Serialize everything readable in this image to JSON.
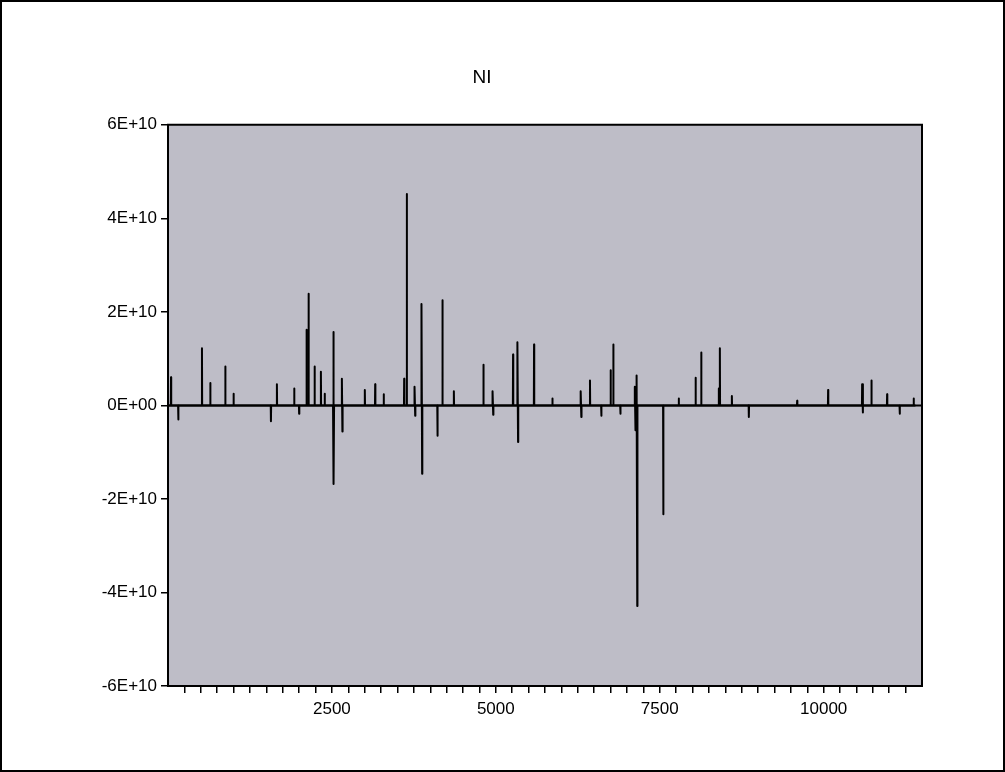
{
  "chart_data": {
    "type": "line",
    "title": "NI",
    "color": "#000000",
    "x": [
      1,
      43,
      46,
      49,
      154,
      157,
      160,
      515,
      518,
      521,
      642,
      645,
      648,
      871,
      874,
      877,
      997,
      1000,
      1003,
      1567,
      1570,
      1573,
      1658,
      1661,
      1664,
      1922,
      1925,
      1928,
      1997,
      2000,
      2003,
      2110,
      2113,
      2116,
      2141,
      2144,
      2147,
      2233,
      2236,
      2239,
      2329,
      2332,
      2335,
      2387,
      2390,
      2393,
      2517,
      2520,
      2530,
      2533,
      2649,
      2652,
      2660,
      2663,
      2999,
      3002,
      3005,
      3157,
      3160,
      3163,
      3287,
      3290,
      3293,
      3599,
      3602,
      3605,
      3639,
      3642,
      3645,
      3757,
      3760,
      3770,
      3773,
      3863,
      3866,
      3876,
      3879,
      4107,
      4110,
      4113,
      4183,
      4186,
      4189,
      4357,
      4360,
      4363,
      4808,
      4811,
      4814,
      4947,
      4950,
      4960,
      4963,
      5260,
      5263,
      5266,
      5326,
      5329,
      5339,
      5342,
      5580,
      5583,
      5586,
      5860,
      5863,
      5866,
      6291,
      6294,
      6304,
      6307,
      6433,
      6436,
      6439,
      6606,
      6609,
      6612,
      6748,
      6751,
      6754,
      6789,
      6792,
      6795,
      6897,
      6900,
      6903,
      7117,
      7120,
      7130,
      7133,
      7144,
      7147,
      7157,
      7160,
      7551,
      7554,
      7557,
      7787,
      7790,
      7793,
      8044,
      8047,
      8050,
      8130,
      8133,
      8136,
      8397,
      8400,
      8403,
      8414,
      8417,
      8420,
      8597,
      8600,
      8603,
      8856,
      8859,
      8862,
      9593,
      9596,
      9599,
      10065,
      10068,
      10071,
      10584,
      10587,
      10597,
      10600,
      10726,
      10729,
      10732,
      10965,
      10968,
      10971,
      11157,
      11160,
      11163,
      11370,
      11373,
      11376,
      11400
    ],
    "values": [
      0,
      0,
      6000000000.0,
      0,
      0,
      -3000000000.0,
      0,
      0,
      12200000000.0,
      0,
      0,
      4800000000.0,
      0,
      0,
      8300000000.0,
      0,
      0,
      2500000000.0,
      0,
      0,
      -3400000000.0,
      0,
      0,
      4500000000.0,
      0,
      0,
      3600000000.0,
      0,
      0,
      -1800000000.0,
      0,
      0,
      16200000000.0,
      0,
      0,
      23900000000.0,
      0,
      0,
      8300000000.0,
      0,
      0,
      7200000000.0,
      0,
      0,
      2500000000.0,
      0,
      0,
      15700000000.0,
      -16800000000.0,
      0,
      0,
      5700000000.0,
      -5600000000.0,
      0,
      0,
      3300000000.0,
      0,
      0,
      4500000000.0,
      0,
      0,
      2400000000.0,
      0,
      0,
      5700000000.0,
      0,
      0,
      45200000000.0,
      0,
      0,
      4000000000.0,
      -2200000000.0,
      0,
      0,
      21700000000.0,
      -14600000000.0,
      0,
      0,
      -6500000000.0,
      0,
      0,
      22500000000.0,
      0,
      0,
      3000000000.0,
      0,
      0,
      8700000000.0,
      0,
      0,
      3000000000.0,
      -2000000000.0,
      0,
      0,
      10900000000.0,
      0,
      0,
      13500000000.0,
      -7800000000.0,
      0,
      0,
      13000000000.0,
      0,
      0,
      1500000000.0,
      0,
      0,
      3000000000.0,
      -2500000000.0,
      0,
      0,
      5300000000.0,
      0,
      0,
      -2200000000.0,
      0,
      0,
      7500000000.0,
      0,
      0,
      13000000000.0,
      0,
      0,
      -1800000000.0,
      0,
      0,
      4000000000.0,
      -5300000000.0,
      0,
      0,
      6400000000.0,
      -42900000000.0,
      0,
      0,
      -23300000000.0,
      0,
      0,
      1500000000.0,
      0,
      0,
      5900000000.0,
      0,
      0,
      11300000000.0,
      0,
      0,
      3600000000.0,
      0,
      0,
      12200000000.0,
      0,
      0,
      2000000000.0,
      0,
      0,
      -2500000000.0,
      0,
      0,
      1000000000.0,
      0,
      0,
      3300000000.0,
      0,
      0,
      4500000000.0,
      -1500000000.0,
      0,
      0,
      5300000000.0,
      0,
      0,
      2400000000.0,
      0,
      0,
      -1800000000.0,
      0,
      0,
      1500000000.0,
      0,
      0
    ],
    "xlim": [
      0,
      11500
    ],
    "xticks": [
      {
        "value": 250,
        "label": null
      },
      {
        "value": 500,
        "label": null
      },
      {
        "value": 750,
        "label": null
      },
      {
        "value": 1000,
        "label": null
      },
      {
        "value": 1250,
        "label": null
      },
      {
        "value": 1500,
        "label": null
      },
      {
        "value": 1750,
        "label": null
      },
      {
        "value": 2000,
        "label": null
      },
      {
        "value": 2250,
        "label": null
      },
      2500,
      {
        "value": 2750,
        "label": null
      },
      {
        "value": 3000,
        "label": null
      },
      {
        "value": 3250,
        "label": null
      },
      {
        "value": 3500,
        "label": null
      },
      {
        "value": 3750,
        "label": null
      },
      {
        "value": 4000,
        "label": null
      },
      {
        "value": 4250,
        "label": null
      },
      {
        "value": 4500,
        "label": null
      },
      {
        "value": 4750,
        "label": null
      },
      5000,
      {
        "value": 5250,
        "label": null
      },
      {
        "value": 5500,
        "label": null
      },
      {
        "value": 5750,
        "label": null
      },
      {
        "value": 6000,
        "label": null
      },
      {
        "value": 6250,
        "label": null
      },
      {
        "value": 6500,
        "label": null
      },
      {
        "value": 6750,
        "label": null
      },
      {
        "value": 7000,
        "label": null
      },
      {
        "value": 7250,
        "label": null
      },
      7500,
      {
        "value": 7750,
        "label": null
      },
      {
        "value": 8000,
        "label": null
      },
      {
        "value": 8250,
        "label": null
      },
      {
        "value": 8500,
        "label": null
      },
      {
        "value": 8750,
        "label": null
      },
      {
        "value": 9000,
        "label": null
      },
      {
        "value": 9250,
        "label": null
      },
      {
        "value": 9500,
        "label": null
      },
      {
        "value": 9750,
        "label": null
      },
      10000,
      {
        "value": 10250,
        "label": null
      },
      {
        "value": 10500,
        "label": null
      },
      {
        "value": 10750,
        "label": null
      },
      {
        "value": 11000,
        "label": null
      },
      {
        "value": 11250,
        "label": null
      }
    ],
    "ylim": [
      -60000000000.0,
      60000000000.0
    ],
    "yticks": [
      {
        "value": -60000000000.0,
        "label": "-6E+10"
      },
      {
        "value": -40000000000.0,
        "label": "-4E+10"
      },
      {
        "value": -20000000000.0,
        "label": "-2E+10"
      },
      {
        "value": 0,
        "label": "0E+00"
      },
      {
        "value": 20000000000.0,
        "label": "2E+10"
      },
      {
        "value": 40000000000.0,
        "label": "4E+10"
      },
      {
        "value": 60000000000.0,
        "label": "6E+10"
      }
    ],
    "ref_lines": [
      {
        "axis": "y",
        "value": 0,
        "color": "#000000"
      }
    ]
  }
}
